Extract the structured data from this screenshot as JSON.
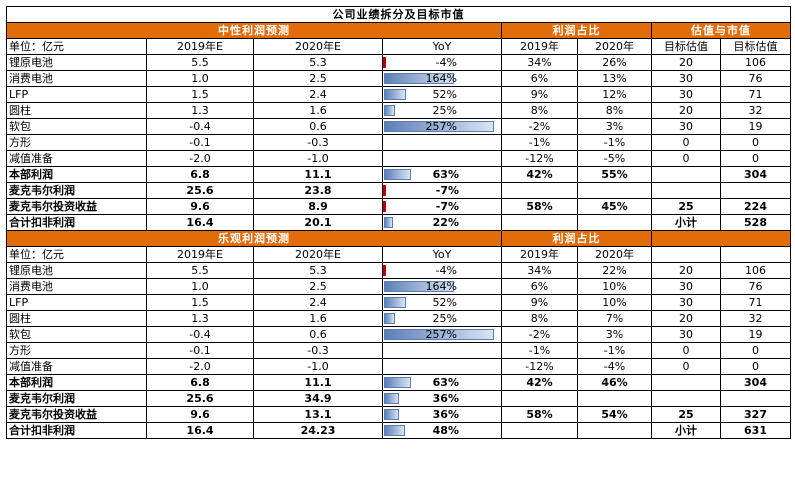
{
  "title": "公司业绩拆分及目标市值",
  "sections": [
    {
      "headers": {
        "profit_forecast": "中性利润预测",
        "profit_share": "利润占比",
        "valuation": "估值与市值"
      },
      "columns": {
        "unit": "单位：亿元",
        "y2019": "2019年E",
        "y2020": "2020年E",
        "yoy": "YoY",
        "share2019": "2019年",
        "share2020": "2020年",
        "target_pe": "目标估值",
        "target_value": "目标估值"
      },
      "rows": [
        {
          "name": "锂原电池",
          "v2019": "5.5",
          "v2020": "5.3",
          "yoy": "-4%",
          "yoy_num": -4,
          "s2019": "34%",
          "s2020": "26%",
          "pe": "20",
          "val": "106",
          "bold": false
        },
        {
          "name": "消费电池",
          "v2019": "1.0",
          "v2020": "2.5",
          "yoy": "164%",
          "yoy_num": 164,
          "s2019": "6%",
          "s2020": "13%",
          "pe": "30",
          "val": "76",
          "bold": false
        },
        {
          "name": "LFP",
          "v2019": "1.5",
          "v2020": "2.4",
          "yoy": "52%",
          "yoy_num": 52,
          "s2019": "9%",
          "s2020": "12%",
          "pe": "30",
          "val": "71",
          "bold": false
        },
        {
          "name": "圆柱",
          "v2019": "1.3",
          "v2020": "1.6",
          "yoy": "25%",
          "yoy_num": 25,
          "s2019": "8%",
          "s2020": "8%",
          "pe": "20",
          "val": "32",
          "bold": false
        },
        {
          "name": "软包",
          "v2019": "-0.4",
          "v2020": "0.6",
          "yoy": "257%",
          "yoy_num": 257,
          "s2019": "-2%",
          "s2020": "3%",
          "pe": "30",
          "val": "19",
          "bold": false
        },
        {
          "name": "方形",
          "v2019": "-0.1",
          "v2020": "-0.3",
          "yoy": "",
          "yoy_num": 0,
          "s2019": "-1%",
          "s2020": "-1%",
          "pe": "0",
          "val": "0",
          "bold": false
        },
        {
          "name": "减值准备",
          "v2019": "-2.0",
          "v2020": "-1.0",
          "yoy": "",
          "yoy_num": 0,
          "s2019": "-12%",
          "s2020": "-5%",
          "pe": "0",
          "val": "0",
          "bold": false
        },
        {
          "name": "本部利润",
          "v2019": "6.8",
          "v2020": "11.1",
          "yoy": "63%",
          "yoy_num": 63,
          "s2019": "42%",
          "s2020": "55%",
          "pe": "",
          "val": "304",
          "bold": true
        },
        {
          "name": "麦克韦尔利润",
          "v2019": "25.6",
          "v2020": "23.8",
          "yoy": "-7%",
          "yoy_num": -7,
          "s2019": "",
          "s2020": "",
          "pe": "",
          "val": "",
          "bold": true
        },
        {
          "name": "麦克韦尔投资收益",
          "v2019": "9.6",
          "v2020": "8.9",
          "yoy": "-7%",
          "yoy_num": -7,
          "s2019": "58%",
          "s2020": "45%",
          "pe": "25",
          "val": "224",
          "bold": true
        },
        {
          "name": "合计扣非利润",
          "v2019": "16.4",
          "v2020": "20.1",
          "yoy": "22%",
          "yoy_num": 22,
          "s2019": "",
          "s2020": "",
          "pe": "小计",
          "val": "528",
          "bold": true
        }
      ]
    },
    {
      "headers": {
        "profit_forecast": "乐观利润预测",
        "profit_share": "利润占比",
        "valuation": ""
      },
      "columns": {
        "unit": "单位：亿元",
        "y2019": "2019年E",
        "y2020": "2020年E",
        "yoy": "YoY",
        "share2019": "2019年",
        "share2020": "2020年",
        "target_pe": "",
        "target_value": ""
      },
      "rows": [
        {
          "name": "锂原电池",
          "v2019": "5.5",
          "v2020": "5.3",
          "yoy": "-4%",
          "yoy_num": -4,
          "s2019": "34%",
          "s2020": "22%",
          "pe": "20",
          "val": "106",
          "bold": false
        },
        {
          "name": "消费电池",
          "v2019": "1.0",
          "v2020": "2.5",
          "yoy": "164%",
          "yoy_num": 164,
          "s2019": "6%",
          "s2020": "10%",
          "pe": "30",
          "val": "76",
          "bold": false
        },
        {
          "name": "LFP",
          "v2019": "1.5",
          "v2020": "2.4",
          "yoy": "52%",
          "yoy_num": 52,
          "s2019": "9%",
          "s2020": "10%",
          "pe": "30",
          "val": "71",
          "bold": false
        },
        {
          "name": "圆柱",
          "v2019": "1.3",
          "v2020": "1.6",
          "yoy": "25%",
          "yoy_num": 25,
          "s2019": "8%",
          "s2020": "7%",
          "pe": "20",
          "val": "32",
          "bold": false
        },
        {
          "name": "软包",
          "v2019": "-0.4",
          "v2020": "0.6",
          "yoy": "257%",
          "yoy_num": 257,
          "s2019": "-2%",
          "s2020": "3%",
          "pe": "30",
          "val": "19",
          "bold": false
        },
        {
          "name": "方形",
          "v2019": "-0.1",
          "v2020": "-0.3",
          "yoy": "",
          "yoy_num": 0,
          "s2019": "-1%",
          "s2020": "-1%",
          "pe": "0",
          "val": "0",
          "bold": false
        },
        {
          "name": "减值准备",
          "v2019": "-2.0",
          "v2020": "-1.0",
          "yoy": "",
          "yoy_num": 0,
          "s2019": "-12%",
          "s2020": "-4%",
          "pe": "0",
          "val": "0",
          "bold": false
        },
        {
          "name": "本部利润",
          "v2019": "6.8",
          "v2020": "11.1",
          "yoy": "63%",
          "yoy_num": 63,
          "s2019": "42%",
          "s2020": "46%",
          "pe": "",
          "val": "304",
          "bold": true
        },
        {
          "name": "麦克韦尔利润",
          "v2019": "25.6",
          "v2020": "34.9",
          "yoy": "36%",
          "yoy_num": 36,
          "s2019": "",
          "s2020": "",
          "pe": "",
          "val": "",
          "bold": true
        },
        {
          "name": "麦克韦尔投资收益",
          "v2019": "9.6",
          "v2020": "13.1",
          "yoy": "36%",
          "yoy_num": 36,
          "s2019": "58%",
          "s2020": "54%",
          "pe": "25",
          "val": "327",
          "bold": true
        },
        {
          "name": "合计扣非利润",
          "v2019": "16.4",
          "v2020": "24.23",
          "yoy": "48%",
          "yoy_num": 48,
          "s2019": "",
          "s2020": "",
          "pe": "小计",
          "val": "631",
          "bold": true
        }
      ]
    }
  ],
  "colors": {
    "header_bg": "#e26b0a",
    "bar_blue": "#5b7fb5",
    "bar_red": "#c00000"
  }
}
